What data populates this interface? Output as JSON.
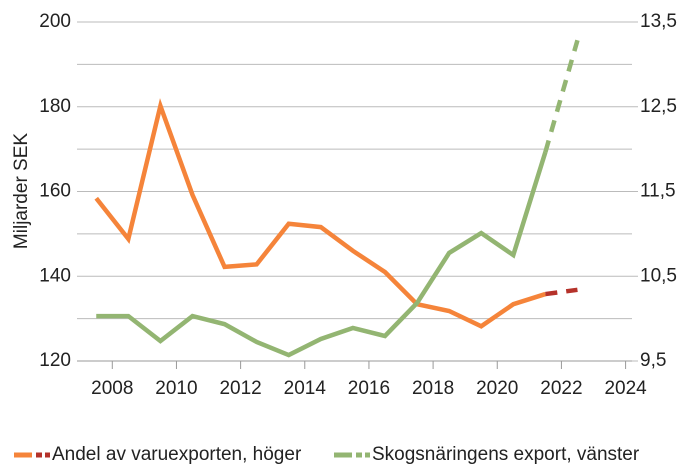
{
  "chart_data": {
    "type": "line",
    "y_label": "Miljarder SEK",
    "x": [
      2007.5,
      2008.5,
      2009.5,
      2010.5,
      2011.5,
      2012.5,
      2013.5,
      2014.5,
      2015.5,
      2016.5,
      2017.5,
      2018.5,
      2019.5,
      2020.5,
      2021.5,
      2022.5
    ],
    "dashed_after": 2021.5,
    "series": [
      {
        "name": "Andel av varuexporten, höger",
        "color": "#f5843a",
        "dash_color": "#b5322a",
        "axis": "y2",
        "values": [
          11.42,
          10.94,
          12.51,
          11.46,
          10.61,
          10.64,
          11.12,
          11.08,
          10.8,
          10.55,
          10.17,
          10.09,
          9.91,
          10.17,
          10.29,
          10.34
        ]
      },
      {
        "name": "Skogsnäringens export, vänster",
        "color": "#93b572",
        "dash_color": "#93b572",
        "values": [
          130.6,
          130.6,
          124.7,
          130.6,
          128.7,
          124.5,
          121.4,
          125.2,
          127.8,
          125.9,
          133.7,
          145.5,
          150.2,
          145.0,
          169.3,
          195.7
        ]
      }
    ],
    "xlim": [
      2006.9,
      2024.2
    ],
    "xticks": [
      2008,
      2010,
      2012,
      2014,
      2016,
      2018,
      2020,
      2022,
      2024
    ],
    "ylim": [
      120,
      200
    ],
    "yticks": [
      120,
      140,
      160,
      180,
      200
    ],
    "minor_yticks": [
      130,
      150,
      170,
      190
    ],
    "y2lim": [
      9.5,
      13.5
    ],
    "y2ticks": [
      {
        "value": 9.5,
        "label": "9,5"
      },
      {
        "value": 10.5,
        "label": "10,5"
      },
      {
        "value": 11.5,
        "label": "11,5"
      },
      {
        "value": 12.5,
        "label": "12,5"
      },
      {
        "value": 13.5,
        "label": "13,5"
      }
    ],
    "grid": true,
    "legend": "bottom"
  }
}
